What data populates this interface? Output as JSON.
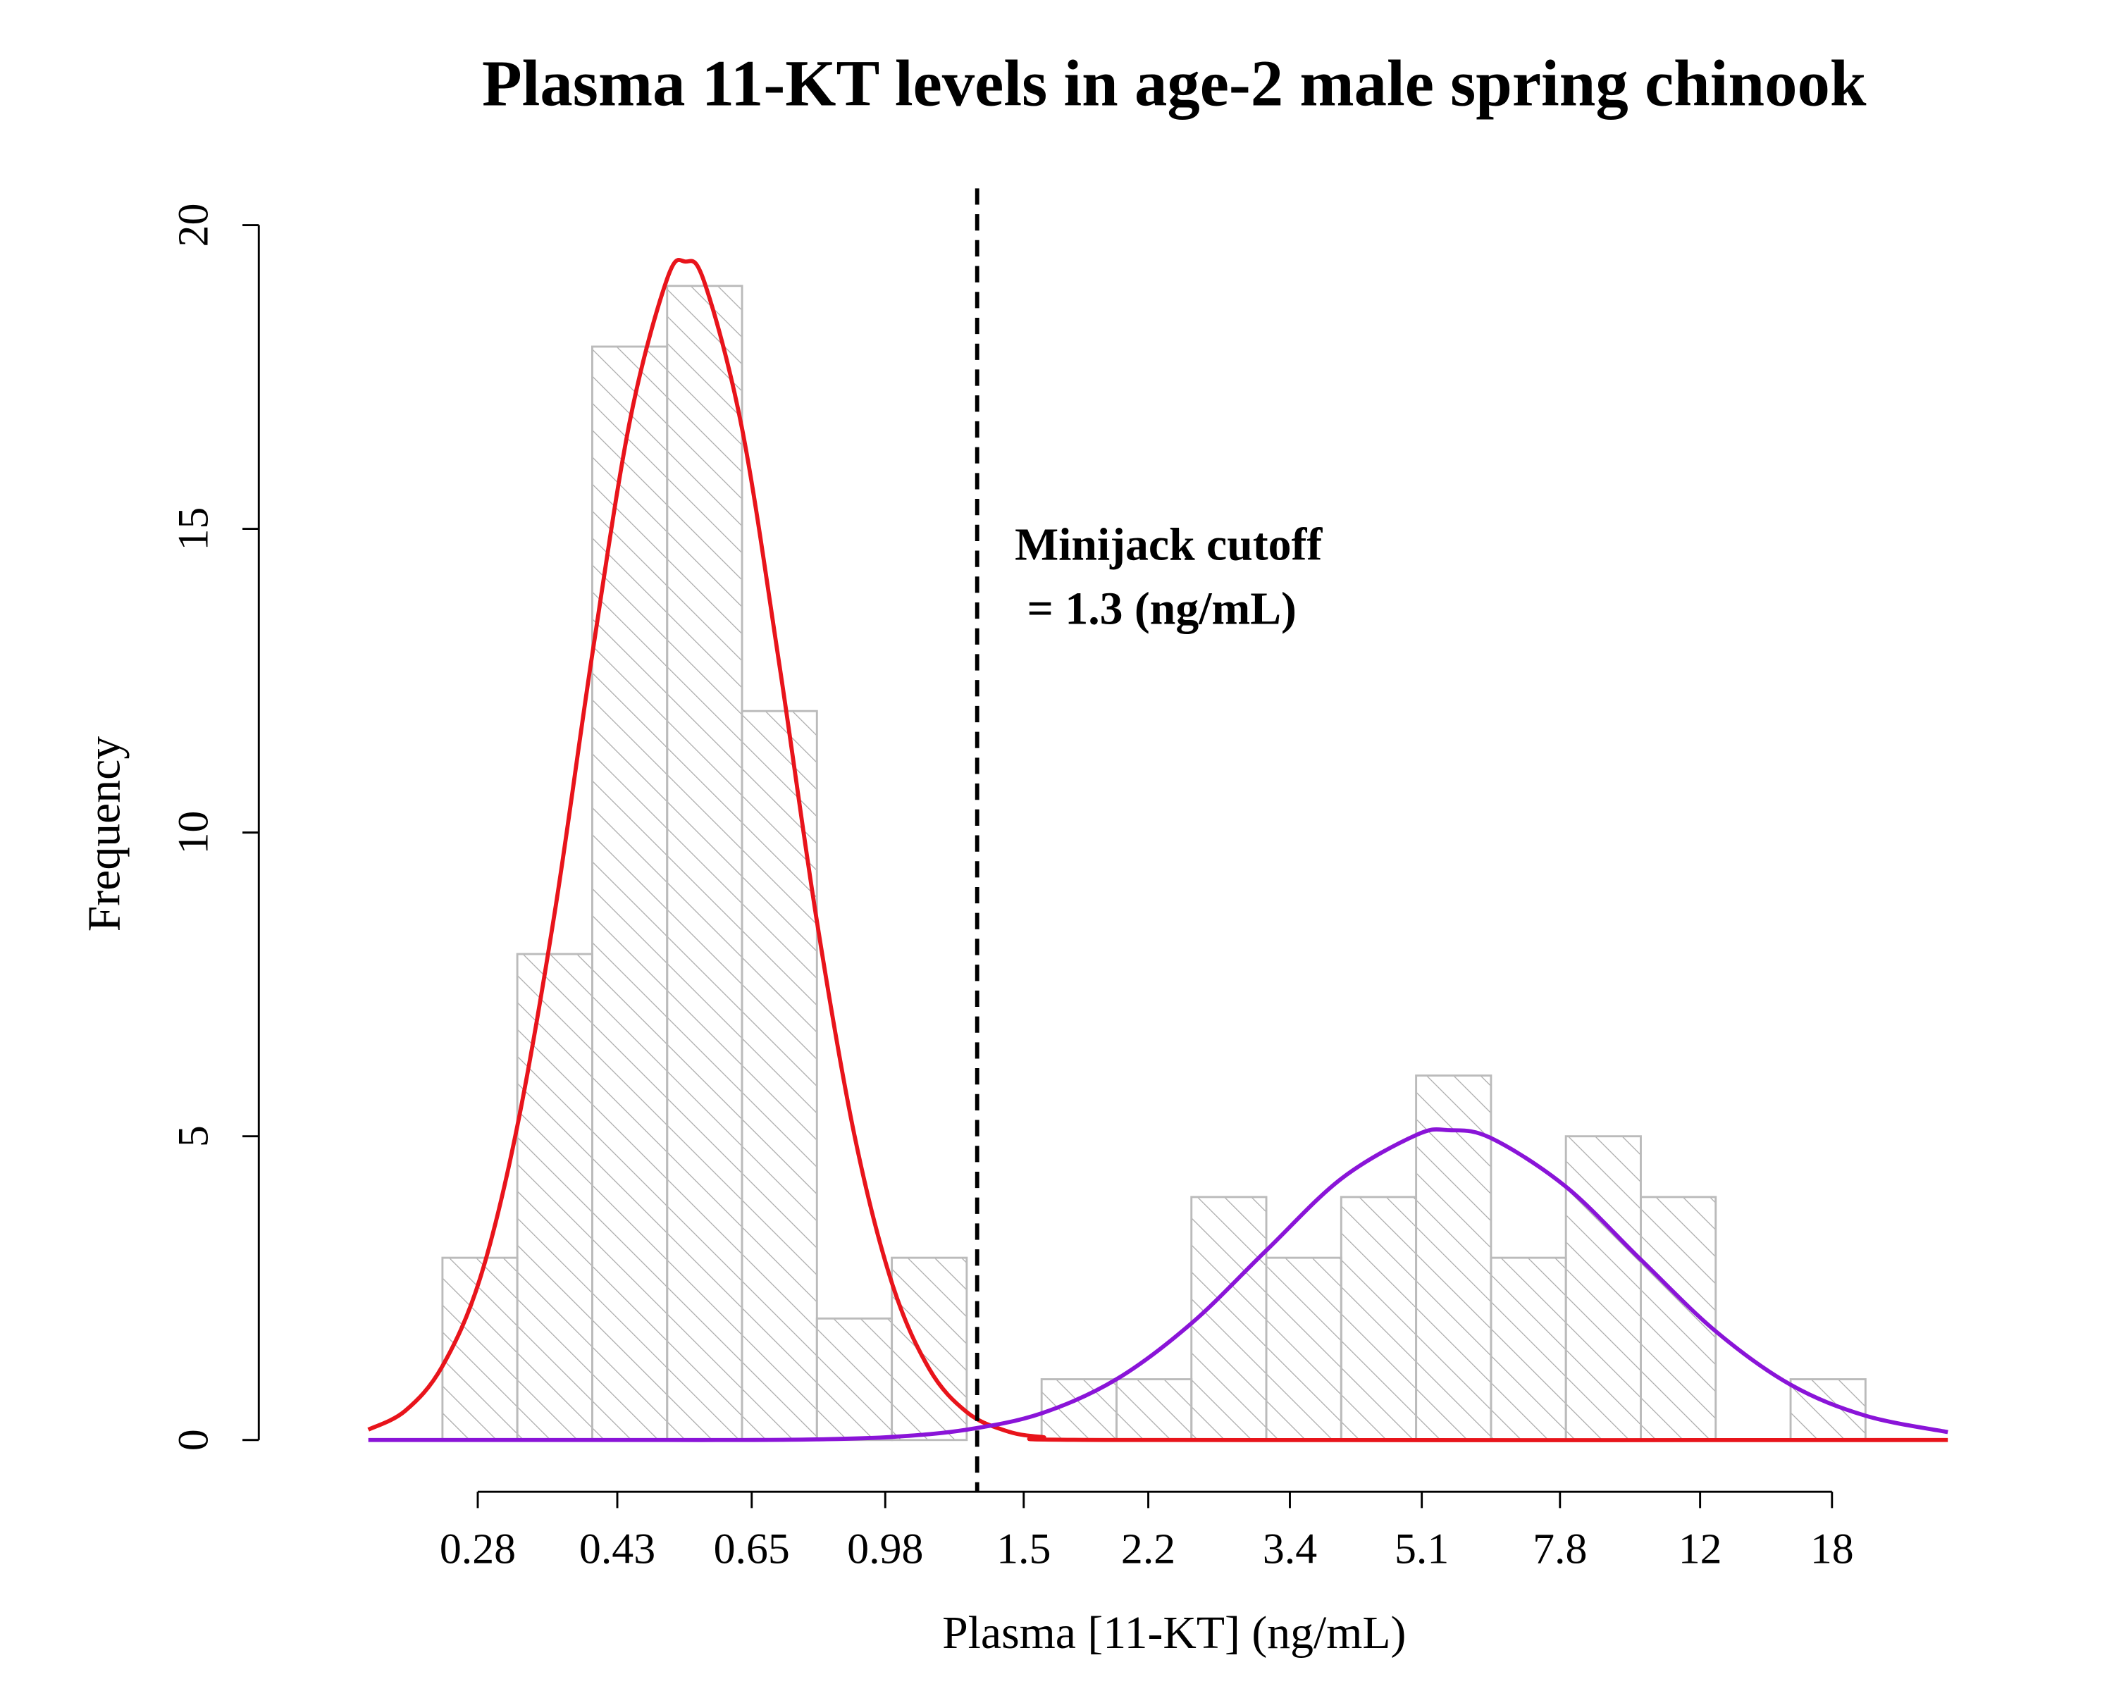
{
  "chart_data": {
    "type": "histogram",
    "title": "Plasma 11-KT levels in age-2 male spring chinook",
    "x_label": "Plasma [11-KT] (ng/mL)",
    "y_label": "Frequency",
    "log_x": true,
    "bins": [
      0.2512,
      0.3162,
      0.3981,
      0.5012,
      0.631,
      0.7943,
      1.0,
      1.2589,
      1.5849,
      1.9953,
      2.5119,
      3.1623,
      3.9811,
      5.0119,
      6.3096,
      7.9433,
      10,
      12.589,
      15.849,
      19.953
    ],
    "counts": [
      3,
      8,
      18,
      19,
      12,
      2,
      3,
      0,
      1,
      1,
      4,
      3,
      4,
      6,
      3,
      5,
      4,
      0,
      1
    ],
    "bar_edge_color": "#bbbbbb",
    "hatch_color": "#aaaaaa",
    "curves": [
      {
        "color": "#e8141b",
        "x": [
          0.2,
          0.224,
          0.251,
          0.282,
          0.316,
          0.355,
          0.398,
          0.447,
          0.501,
          0.53,
          0.562,
          0.631,
          0.708,
          0.794,
          0.891,
          1,
          1.122,
          1.259,
          1.413,
          1.585,
          1.995,
          25.7
        ],
        "values": [
          0.17,
          0.48,
          1.21,
          2.66,
          5.15,
          8.71,
          12.92,
          16.78,
          19.11,
          19.4,
          19.06,
          16.65,
          12.75,
          8.55,
          5.03,
          2.59,
          1.17,
          0.46,
          0.16,
          0.05,
          0,
          0
        ]
      },
      {
        "color": "#8a14d8",
        "x": [
          0.2,
          0.251,
          0.316,
          0.398,
          0.501,
          0.631,
          0.794,
          1,
          1.259,
          1.585,
          1.995,
          2.512,
          3.162,
          3.981,
          5.012,
          5.546,
          6.31,
          7.943,
          10,
          12.59,
          15.85,
          19.95,
          25.7
        ],
        "values": [
          0,
          0,
          0,
          0,
          0,
          0,
          0.01,
          0.05,
          0.17,
          0.44,
          1.0,
          1.92,
          3.12,
          4.3,
          5.02,
          5.1,
          4.97,
          4.17,
          2.97,
          1.79,
          0.91,
          0.4,
          0.13
        ]
      }
    ],
    "cutoff": 1.3,
    "annotation": [
      "Minijack cutoff",
      "= 1.3 (ng/mL)"
    ],
    "xlim": [
      0.198,
      25.7
    ],
    "xticks": [
      0.28,
      0.43,
      0.65,
      0.98,
      1.5,
      2.2,
      3.4,
      5.1,
      7.8,
      12,
      18
    ],
    "ylim": [
      0,
      20
    ],
    "yticks": [
      0,
      5,
      10,
      15,
      20
    ]
  }
}
